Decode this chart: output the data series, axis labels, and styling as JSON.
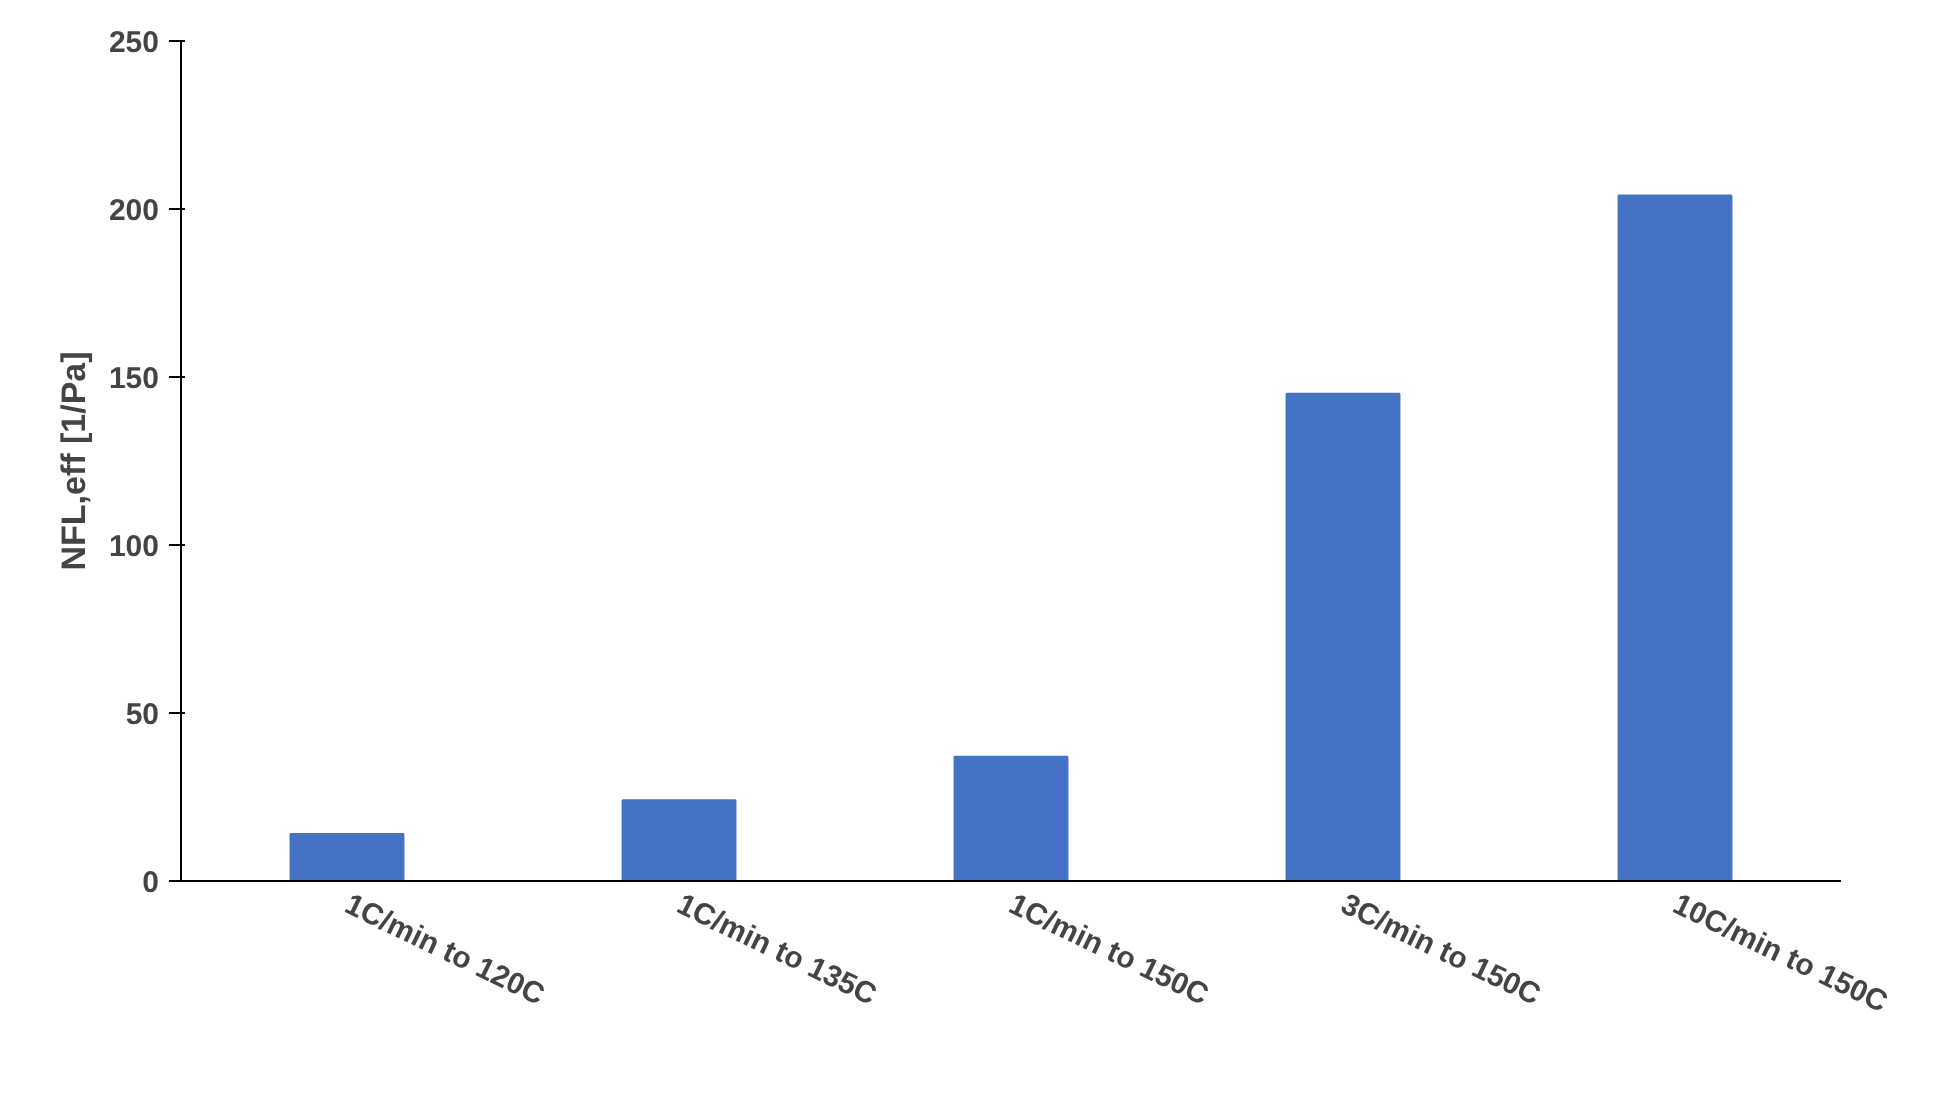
{
  "chart_data": {
    "type": "bar",
    "ylabel": "NFL,eff [1/Pa]",
    "categories": [
      "1C/min to 120C",
      "1C/min to 135C",
      "1C/min to 150C",
      "3C/min to 150C",
      "10C/min to 150C"
    ],
    "values": [
      14,
      24,
      37,
      145,
      204
    ],
    "color": "#4472c4",
    "ylim": [
      0,
      250
    ],
    "yticks": [
      0,
      50,
      100,
      150,
      200,
      250
    ],
    "grid": false
  }
}
